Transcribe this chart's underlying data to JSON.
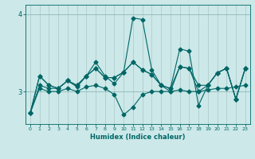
{
  "xlabel": "Humidex (Indice chaleur)",
  "background_color": "#cce8e8",
  "line_color": "#006666",
  "grid_color": "#b0cccc",
  "xlim": [
    -0.5,
    23.5
  ],
  "ylim": [
    2.58,
    4.12
  ],
  "yticks": [
    3,
    4
  ],
  "xticks": [
    0,
    1,
    2,
    3,
    4,
    5,
    6,
    7,
    8,
    9,
    10,
    11,
    12,
    13,
    14,
    15,
    16,
    17,
    18,
    19,
    20,
    21,
    22,
    23
  ],
  "series": [
    [
      2.72,
      3.2,
      3.08,
      3.04,
      3.14,
      3.08,
      3.2,
      3.3,
      3.18,
      3.18,
      3.25,
      3.95,
      3.93,
      3.28,
      3.08,
      3.04,
      3.55,
      3.52,
      2.82,
      3.08,
      3.24,
      3.3,
      2.9,
      3.3
    ],
    [
      2.72,
      3.2,
      3.08,
      3.04,
      3.14,
      3.08,
      3.2,
      3.3,
      3.18,
      3.18,
      3.25,
      3.38,
      3.28,
      3.22,
      3.08,
      3.04,
      3.32,
      3.3,
      3.08,
      3.08,
      3.24,
      3.3,
      2.9,
      3.3
    ],
    [
      2.72,
      3.08,
      3.04,
      3.04,
      3.14,
      3.06,
      3.2,
      3.38,
      3.2,
      3.1,
      3.25,
      3.38,
      3.28,
      3.22,
      3.08,
      3.0,
      3.32,
      3.3,
      3.0,
      3.08,
      3.24,
      3.3,
      2.9,
      3.3
    ],
    [
      2.72,
      3.04,
      3.0,
      3.0,
      3.04,
      3.0,
      3.06,
      3.08,
      3.04,
      2.96,
      2.7,
      2.8,
      2.96,
      3.0,
      3.0,
      3.0,
      3.02,
      3.0,
      3.0,
      3.02,
      3.04,
      3.04,
      3.06,
      3.08
    ]
  ],
  "marker": "D",
  "markersize": 2.5,
  "linewidth": 0.8,
  "figsize": [
    3.2,
    2.0
  ],
  "dpi": 100
}
